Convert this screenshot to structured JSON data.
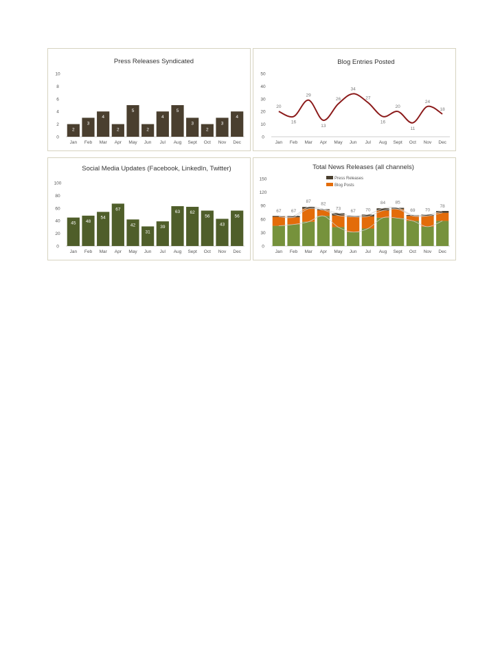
{
  "chart_data": [
    {
      "type": "bar",
      "title": "Press Releases Syndicated",
      "categories": [
        "Jan",
        "Feb",
        "Mar",
        "Apr",
        "May",
        "Jun",
        "Jul",
        "Aug",
        "Sept",
        "Oct",
        "Nov",
        "Dec"
      ],
      "values": [
        2,
        3,
        4,
        2,
        5,
        2,
        4,
        5,
        3,
        2,
        3,
        4
      ],
      "ylim": [
        0,
        10
      ],
      "yticks": [
        0,
        2,
        4,
        6,
        8,
        10
      ],
      "grid": false,
      "color": "#4a3f2f"
    },
    {
      "type": "line",
      "title": "Blog Entries Posted",
      "categories": [
        "Jan",
        "Feb",
        "Mar",
        "Apr",
        "May",
        "Jun",
        "Jul",
        "Aug",
        "Sept",
        "Oct",
        "Nov",
        "Dec"
      ],
      "values": [
        20,
        16,
        29,
        13,
        26,
        34,
        27,
        16,
        20,
        11,
        24,
        18
      ],
      "ylim": [
        0,
        50
      ],
      "yticks": [
        0,
        10,
        20,
        30,
        40,
        50
      ],
      "grid": false,
      "color": "#8b1a1a"
    },
    {
      "type": "bar",
      "title": "Social Media Updates (Facebook, LinkedIn, Twitter)",
      "categories": [
        "Jan",
        "Feb",
        "Mar",
        "Apr",
        "May",
        "Jun",
        "Jul",
        "Aug",
        "Sept",
        "Oct",
        "Nov",
        "Dec"
      ],
      "values": [
        45,
        48,
        54,
        67,
        42,
        31,
        39,
        63,
        62,
        56,
        43,
        56
      ],
      "ylim": [
        0,
        100
      ],
      "yticks": [
        0,
        20,
        40,
        60,
        80,
        100
      ],
      "grid": false,
      "color": "#4f5e2a"
    },
    {
      "type": "area",
      "title": "Total News Releases (all channels)",
      "categories": [
        "Jan",
        "Feb",
        "Mar",
        "Apr",
        "May",
        "Jun",
        "Jul",
        "Aug",
        "Sept",
        "Oct",
        "Nov",
        "Dec"
      ],
      "series": [
        {
          "name": "",
          "values": [
            45,
            48,
            54,
            67,
            42,
            31,
            39,
            63,
            62,
            56,
            43,
            56
          ],
          "color": "#76923c"
        },
        {
          "name": "Blog Posts",
          "values": [
            20,
            16,
            29,
            13,
            26,
            34,
            27,
            16,
            20,
            11,
            24,
            18
          ],
          "color": "#e36c0a"
        },
        {
          "name": "Press Releases",
          "values": [
            2,
            3,
            4,
            2,
            5,
            2,
            4,
            5,
            3,
            2,
            3,
            4
          ],
          "color": "#4a3f2f"
        }
      ],
      "totals": [
        67,
        67,
        87,
        82,
        73,
        67,
        70,
        84,
        85,
        69,
        70,
        78
      ],
      "ylim": [
        0,
        150
      ],
      "yticks": [
        0,
        30,
        60,
        90,
        120,
        150
      ],
      "legend": "top",
      "grid": false
    }
  ]
}
